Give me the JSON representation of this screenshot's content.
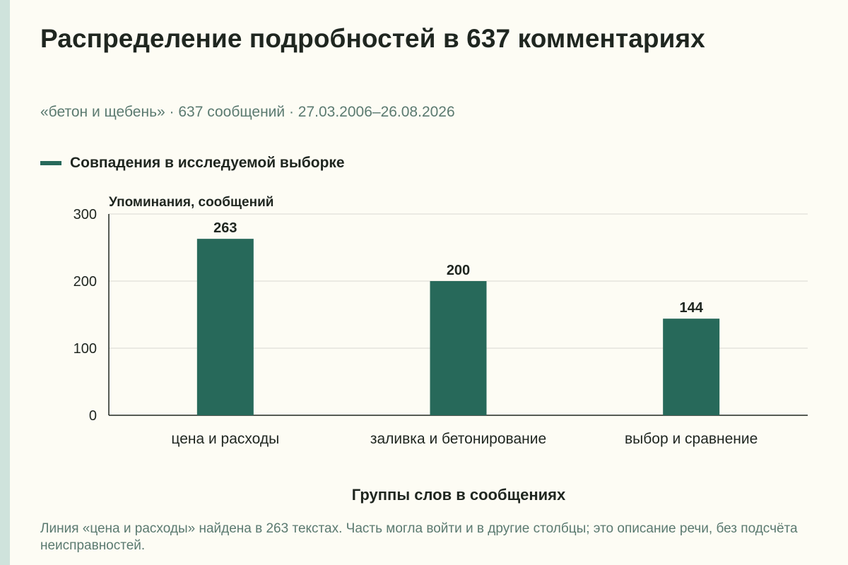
{
  "title": "Распределение подробностей в 637 комментариях",
  "subtitle": "«бетон и щебень» · 637 сообщений · 27.03.2006–26.08.2026",
  "legend": {
    "label": "Совпадения в исследуемой выборке"
  },
  "caption": "Линия «цена и расходы» найдена в 263 текстах. Часть могла войти и в другие столбцы; это описание речи, без подсчёта неисправностей.",
  "colors": {
    "bar": "#27695a",
    "grid": "#d9d9d2",
    "axis": "#1f2620",
    "background": "#fdfcf4"
  },
  "chart_data": {
    "type": "bar",
    "categories": [
      "цена и расходы",
      "заливка и бетонирование",
      "выбор и сравнение"
    ],
    "series": [
      {
        "name": "Совпадения в исследуемой выборке",
        "values": [
          263,
          200,
          144
        ]
      }
    ],
    "ylabel": "Упоминания, сообщений",
    "xlabel": "Группы слов в сообщениях",
    "ylim": [
      0,
      300
    ],
    "yticks": [
      0,
      100,
      200,
      300
    ],
    "grid": true,
    "legend_position": "top-left",
    "data_labels": true
  }
}
